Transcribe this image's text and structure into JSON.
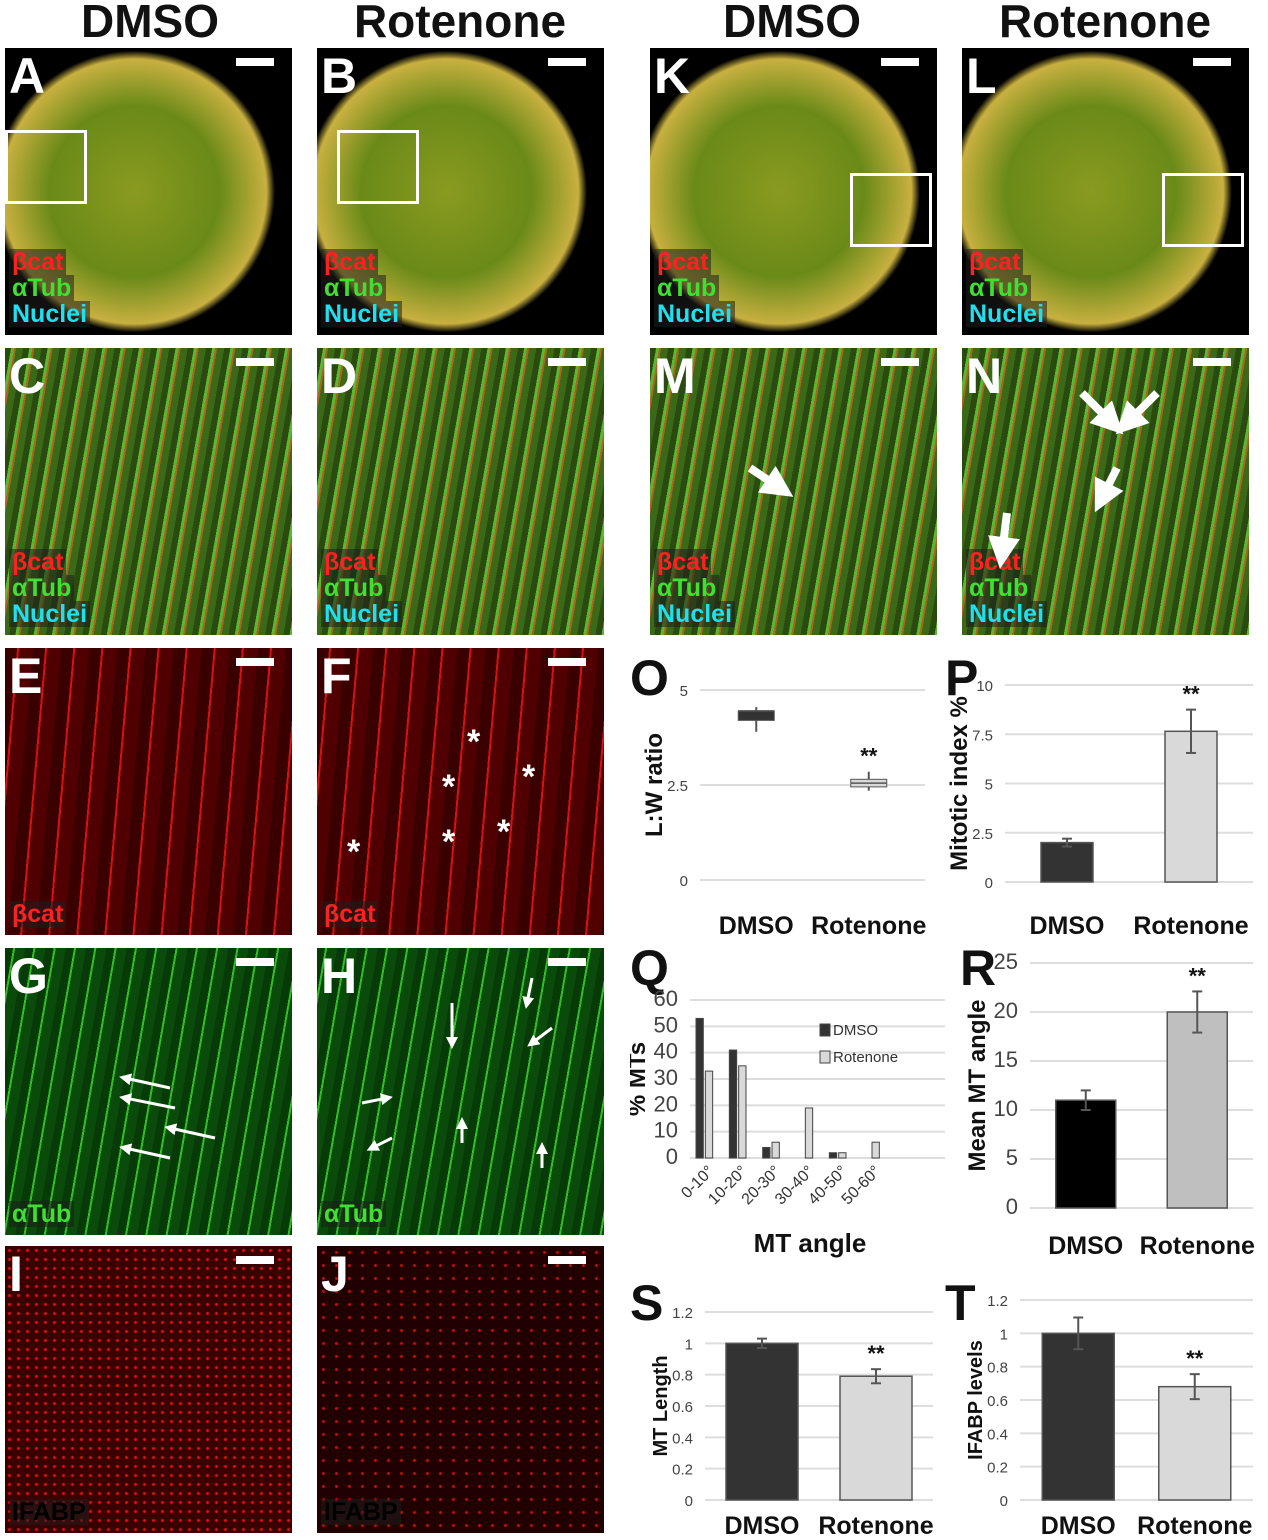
{
  "headers": [
    "DMSO",
    "Rotenone",
    "DMSO",
    "Rotenone"
  ],
  "channels": {
    "bcat": "βcat",
    "atub": "αTub",
    "nuclei": "Nuclei",
    "ifabp": "IFABP"
  },
  "colors": {
    "bcat": "#ff2020",
    "atub": "#40e030",
    "nuclei": "#20e0f0",
    "dark_bar": "#333333",
    "light_bar": "#d9d9d9",
    "black_bar": "#000000",
    "mid_bar": "#bfbfbf"
  },
  "panels": [
    {
      "letter": "A",
      "style": "merge",
      "labels": [
        "bcat",
        "atub",
        "nuclei"
      ],
      "inset": true
    },
    {
      "letter": "B",
      "style": "merge",
      "labels": [
        "bcat",
        "atub",
        "nuclei"
      ],
      "inset": true
    },
    {
      "letter": "K",
      "style": "merge",
      "labels": [
        "bcat",
        "atub",
        "nuclei"
      ],
      "inset": true
    },
    {
      "letter": "L",
      "style": "merge",
      "labels": [
        "bcat",
        "atub",
        "nuclei"
      ],
      "inset": true
    },
    {
      "letter": "C",
      "style": "zoom",
      "labels": [
        "bcat",
        "atub",
        "nuclei"
      ]
    },
    {
      "letter": "D",
      "style": "zoom",
      "labels": [
        "bcat",
        "atub",
        "nuclei"
      ]
    },
    {
      "letter": "M",
      "style": "zoom",
      "labels": [
        "bcat",
        "atub",
        "nuclei"
      ],
      "arrows": 1
    },
    {
      "letter": "N",
      "style": "zoom",
      "labels": [
        "bcat",
        "atub",
        "nuclei"
      ],
      "arrows": 4
    },
    {
      "letter": "E",
      "style": "red",
      "labels": [
        "bcat"
      ]
    },
    {
      "letter": "F",
      "style": "red",
      "labels": [
        "bcat"
      ],
      "asterisks": 6
    },
    {
      "letter": "G",
      "style": "green",
      "labels": [
        "atub"
      ],
      "arrows": 4
    },
    {
      "letter": "H",
      "style": "green",
      "labels": [
        "atub"
      ],
      "arrows": 7
    },
    {
      "letter": "I",
      "style": "ifabp",
      "labels": [
        "ifabp"
      ]
    },
    {
      "letter": "J",
      "style": "ifabp2",
      "labels": [
        "ifabp"
      ]
    }
  ],
  "asterisk": "*",
  "chart_data": [
    {
      "letter": "O",
      "type": "box",
      "categories": [
        "DMSO",
        "Rotenone"
      ],
      "ylabel": "L:W ratio",
      "ylim": [
        0,
        5
      ],
      "ticks": [
        "0",
        "2.5",
        "5"
      ],
      "boxes": [
        {
          "min": 3.9,
          "q1": 4.2,
          "median": 4.45,
          "q3": 4.45,
          "max": 4.55
        },
        {
          "min": 2.35,
          "q1": 2.45,
          "median": 2.55,
          "q3": 2.65,
          "max": 2.85
        }
      ],
      "sig": [
        "",
        "**"
      ],
      "grid": true
    },
    {
      "letter": "P",
      "type": "bar",
      "categories": [
        "DMSO",
        "Rotenone"
      ],
      "ylabel": "Mitotic index %",
      "ylim": [
        0,
        10
      ],
      "ticks": [
        "0",
        "2.5",
        "5",
        "7.5",
        "10"
      ],
      "values": [
        2.0,
        7.65
      ],
      "errors": [
        0.2,
        1.1
      ],
      "sig": [
        "",
        "**"
      ],
      "grid": true
    },
    {
      "letter": "Q",
      "type": "bar",
      "categories": [
        "0-10°",
        "10-20°",
        "20-30°",
        "30-40°",
        "40-50°",
        "50-60°"
      ],
      "xlabel": "MT angle",
      "ylabel": "% MTs",
      "ylim": [
        0,
        60
      ],
      "ticks": [
        "0",
        "10",
        "20",
        "30",
        "40",
        "50",
        "60"
      ],
      "series": [
        {
          "name": "DMSO",
          "values": [
            53,
            41,
            4,
            0,
            2,
            0
          ]
        },
        {
          "name": "Rotenone",
          "values": [
            33,
            35,
            6,
            19,
            2,
            6
          ]
        }
      ],
      "legend": "right",
      "grid": true
    },
    {
      "letter": "R",
      "type": "bar",
      "categories": [
        "DMSO",
        "Rotenone"
      ],
      "ylabel": "Mean MT angle",
      "ylim": [
        0,
        25
      ],
      "ticks": [
        "0",
        "5",
        "10",
        "15",
        "20",
        "25"
      ],
      "values": [
        11,
        20
      ],
      "errors": [
        1,
        2.1
      ],
      "sig": [
        "",
        "**"
      ],
      "grid": true
    },
    {
      "letter": "S",
      "type": "bar",
      "categories": [
        "DMSO",
        "Rotenone"
      ],
      "ylabel": "MT Length",
      "ylim": [
        0,
        1.2
      ],
      "ticks": [
        "0",
        "0.2",
        "0.4",
        "0.6",
        "0.8",
        "1",
        "1.2"
      ],
      "values": [
        1.0,
        0.79
      ],
      "errors": [
        0.03,
        0.045
      ],
      "sig": [
        "",
        "**"
      ],
      "grid": true
    },
    {
      "letter": "T",
      "type": "bar",
      "categories": [
        "DMSO",
        "Rotenone"
      ],
      "ylabel": "IFABP levels",
      "ylim": [
        0,
        1.2
      ],
      "ticks": [
        "0",
        "0.2",
        "0.4",
        "0.6",
        "0.8",
        "1",
        "1.2"
      ],
      "values": [
        1.0,
        0.68
      ],
      "errors": [
        0.095,
        0.075
      ],
      "sig": [
        "",
        "**"
      ],
      "grid": true
    }
  ]
}
